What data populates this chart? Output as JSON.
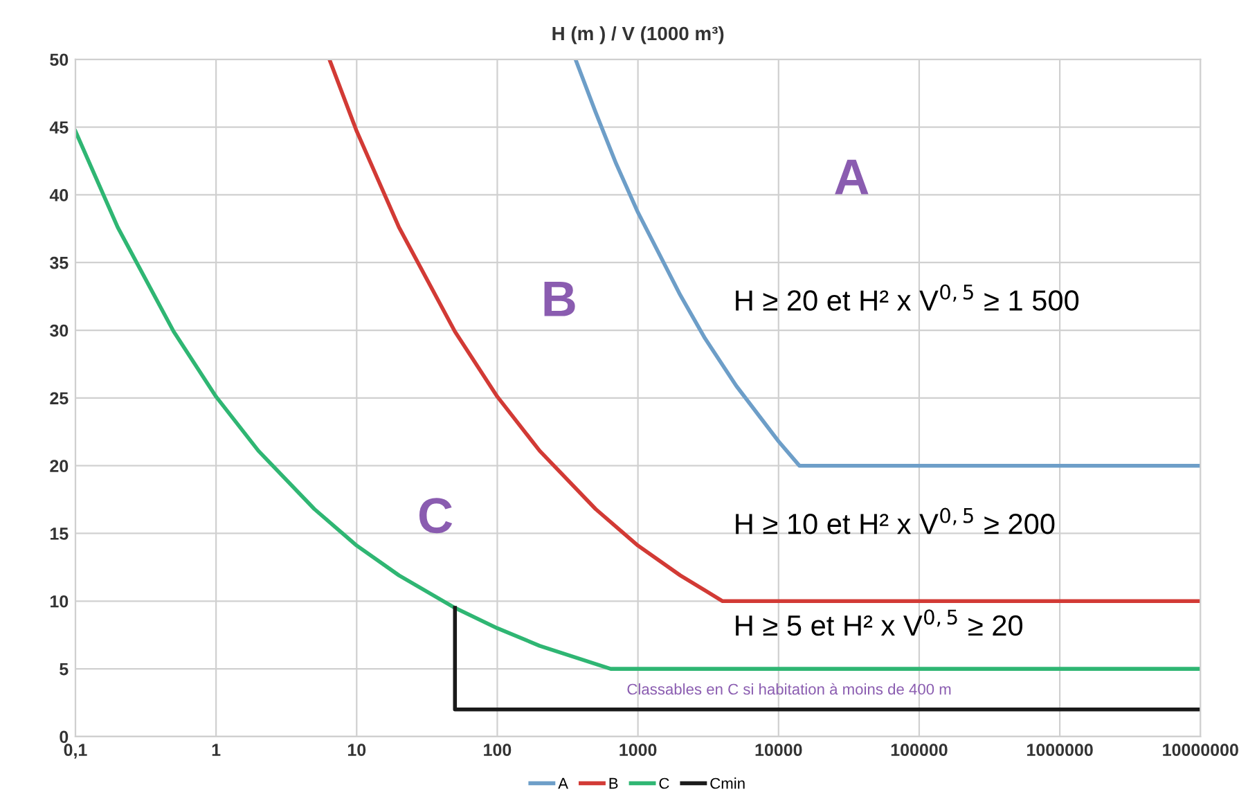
{
  "chart_data": {
    "type": "line",
    "title": "H (m ) / V (1000 m³)",
    "xlim": [
      0.1,
      10000000
    ],
    "ylim": [
      0,
      50
    ],
    "xticks": [
      {
        "value": 0.1,
        "label": "0,1"
      },
      1,
      10,
      100,
      1000,
      10000,
      100000,
      1000000,
      10000000
    ],
    "yticks": [
      0,
      5,
      10,
      15,
      20,
      25,
      30,
      35,
      40,
      45,
      50
    ],
    "log": "x",
    "grid": true,
    "legend": "bottom",
    "marker": "none",
    "line_style": "solid",
    "series": [
      {
        "name": "A",
        "color": "#6d9ec8",
        "x": [
          360,
          500,
          700,
          1000,
          2000,
          3000,
          5000,
          10000,
          14063,
          10000000
        ],
        "values": [
          50.0,
          46.1,
          42.3,
          38.7,
          32.6,
          29.4,
          25.9,
          21.8,
          20.0,
          20.0
        ]
      },
      {
        "name": "B",
        "color": "#d23a35",
        "x": [
          6.4,
          10,
          20,
          50,
          100,
          200,
          500,
          1000,
          2000,
          4000,
          10000000
        ],
        "values": [
          50.0,
          44.7,
          37.6,
          29.9,
          25.1,
          21.1,
          16.8,
          14.1,
          11.9,
          10.0,
          10.0
        ]
      },
      {
        "name": "C",
        "color": "#2fb673",
        "x": [
          0.1,
          0.2,
          0.5,
          1,
          2,
          5,
          10,
          20,
          50,
          100,
          200,
          640,
          10000000
        ],
        "values": [
          44.7,
          37.6,
          29.9,
          25.1,
          21.1,
          16.8,
          14.1,
          11.9,
          9.5,
          8.0,
          6.7,
          5.0,
          5.0
        ]
      },
      {
        "name": "Cmin",
        "color": "#1a1a1a",
        "x": [
          50,
          50,
          10000000
        ],
        "values": [
          9.5,
          2,
          2
        ]
      }
    ],
    "annotations": [
      "A",
      "B",
      "C",
      "H ≥ 20 et H² x V$^{0,5}$ ≥ 1 500",
      "H ≥ 10 et H² x V$^{0,5}$ ≥ 200",
      "H ≥ 5 et H² x V$^{0,5}$ ≥ 20",
      "Classables en C si habitation à moins de 400 m"
    ]
  }
}
